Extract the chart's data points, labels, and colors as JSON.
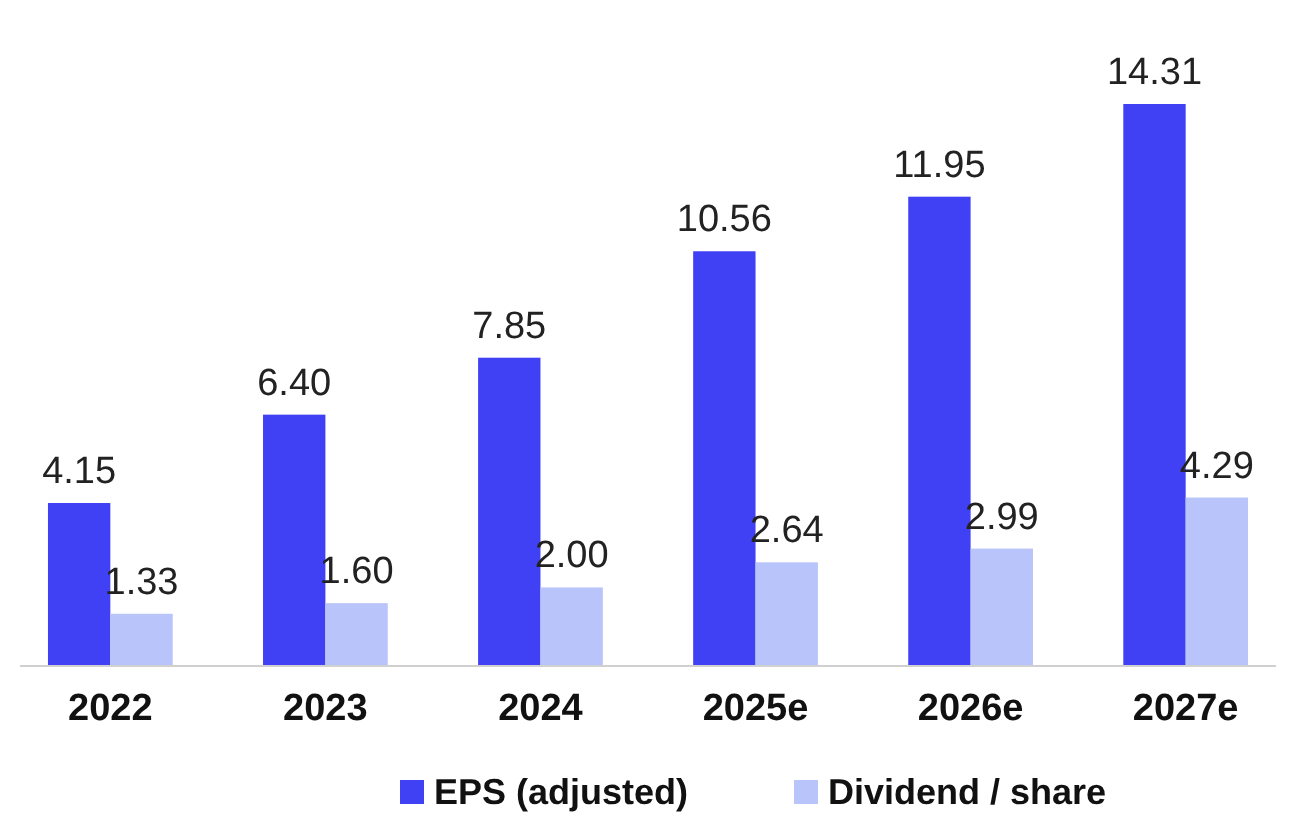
{
  "chart_data": {
    "type": "bar",
    "categories": [
      "2022",
      "2023",
      "2024",
      "2025e",
      "2026e",
      "2027e"
    ],
    "series": [
      {
        "name": "EPS (adjusted)",
        "color": "#4040f5",
        "values": [
          4.15,
          6.4,
          7.85,
          10.56,
          11.95,
          14.31
        ],
        "value_labels": [
          "4.15",
          "6.40",
          "7.85",
          "10.56",
          "11.95",
          "14.31"
        ]
      },
      {
        "name": "Dividend / share",
        "color": "#b8c4fa",
        "values": [
          1.33,
          1.6,
          2.0,
          2.64,
          2.99,
          4.29
        ],
        "value_labels": [
          "1.33",
          "1.60",
          "2.00",
          "2.64",
          "2.99",
          "4.29"
        ]
      }
    ],
    "legend": "bottom"
  }
}
